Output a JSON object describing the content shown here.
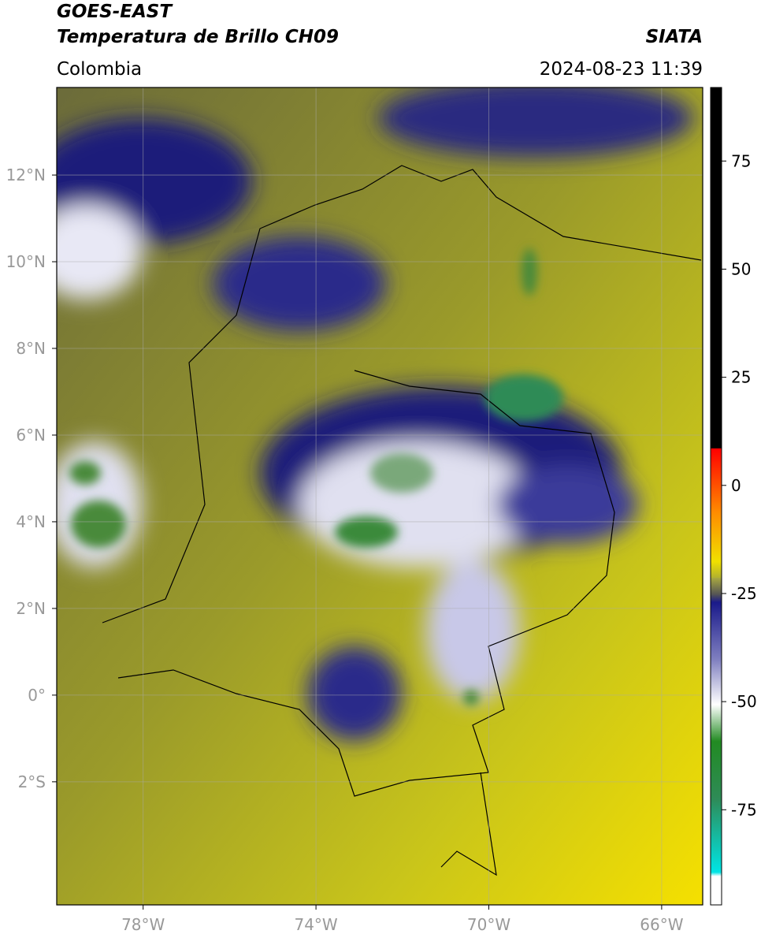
{
  "header": {
    "satellite": "GOES-EAST",
    "product": "Temperatura de Brillo CH09",
    "region": "Colombia",
    "agency": "SIATA",
    "datetime": "2024-08-23 11:39"
  },
  "map": {
    "xlim": [
      -80,
      -65.05
    ],
    "ylim": [
      -4.84,
      14.02
    ],
    "xticks": [
      {
        "value": -78,
        "label": "78°W"
      },
      {
        "value": -74,
        "label": "74°W"
      },
      {
        "value": -70,
        "label": "70°W"
      },
      {
        "value": -66,
        "label": "66°W"
      }
    ],
    "yticks": [
      {
        "value": 12,
        "label": "12°N"
      },
      {
        "value": 10,
        "label": "10°N"
      },
      {
        "value": 8,
        "label": "8°N"
      },
      {
        "value": 6,
        "label": "6°N"
      },
      {
        "value": 4,
        "label": "4°N"
      },
      {
        "value": 2,
        "label": "2°N"
      },
      {
        "value": 0,
        "label": "0°"
      },
      {
        "value": -2,
        "label": "2°S"
      }
    ],
    "grid": true
  },
  "colorbar": {
    "lim": [
      -97,
      92
    ],
    "ticks": [
      75,
      50,
      25,
      0,
      -25,
      -50,
      -75
    ]
  }
}
